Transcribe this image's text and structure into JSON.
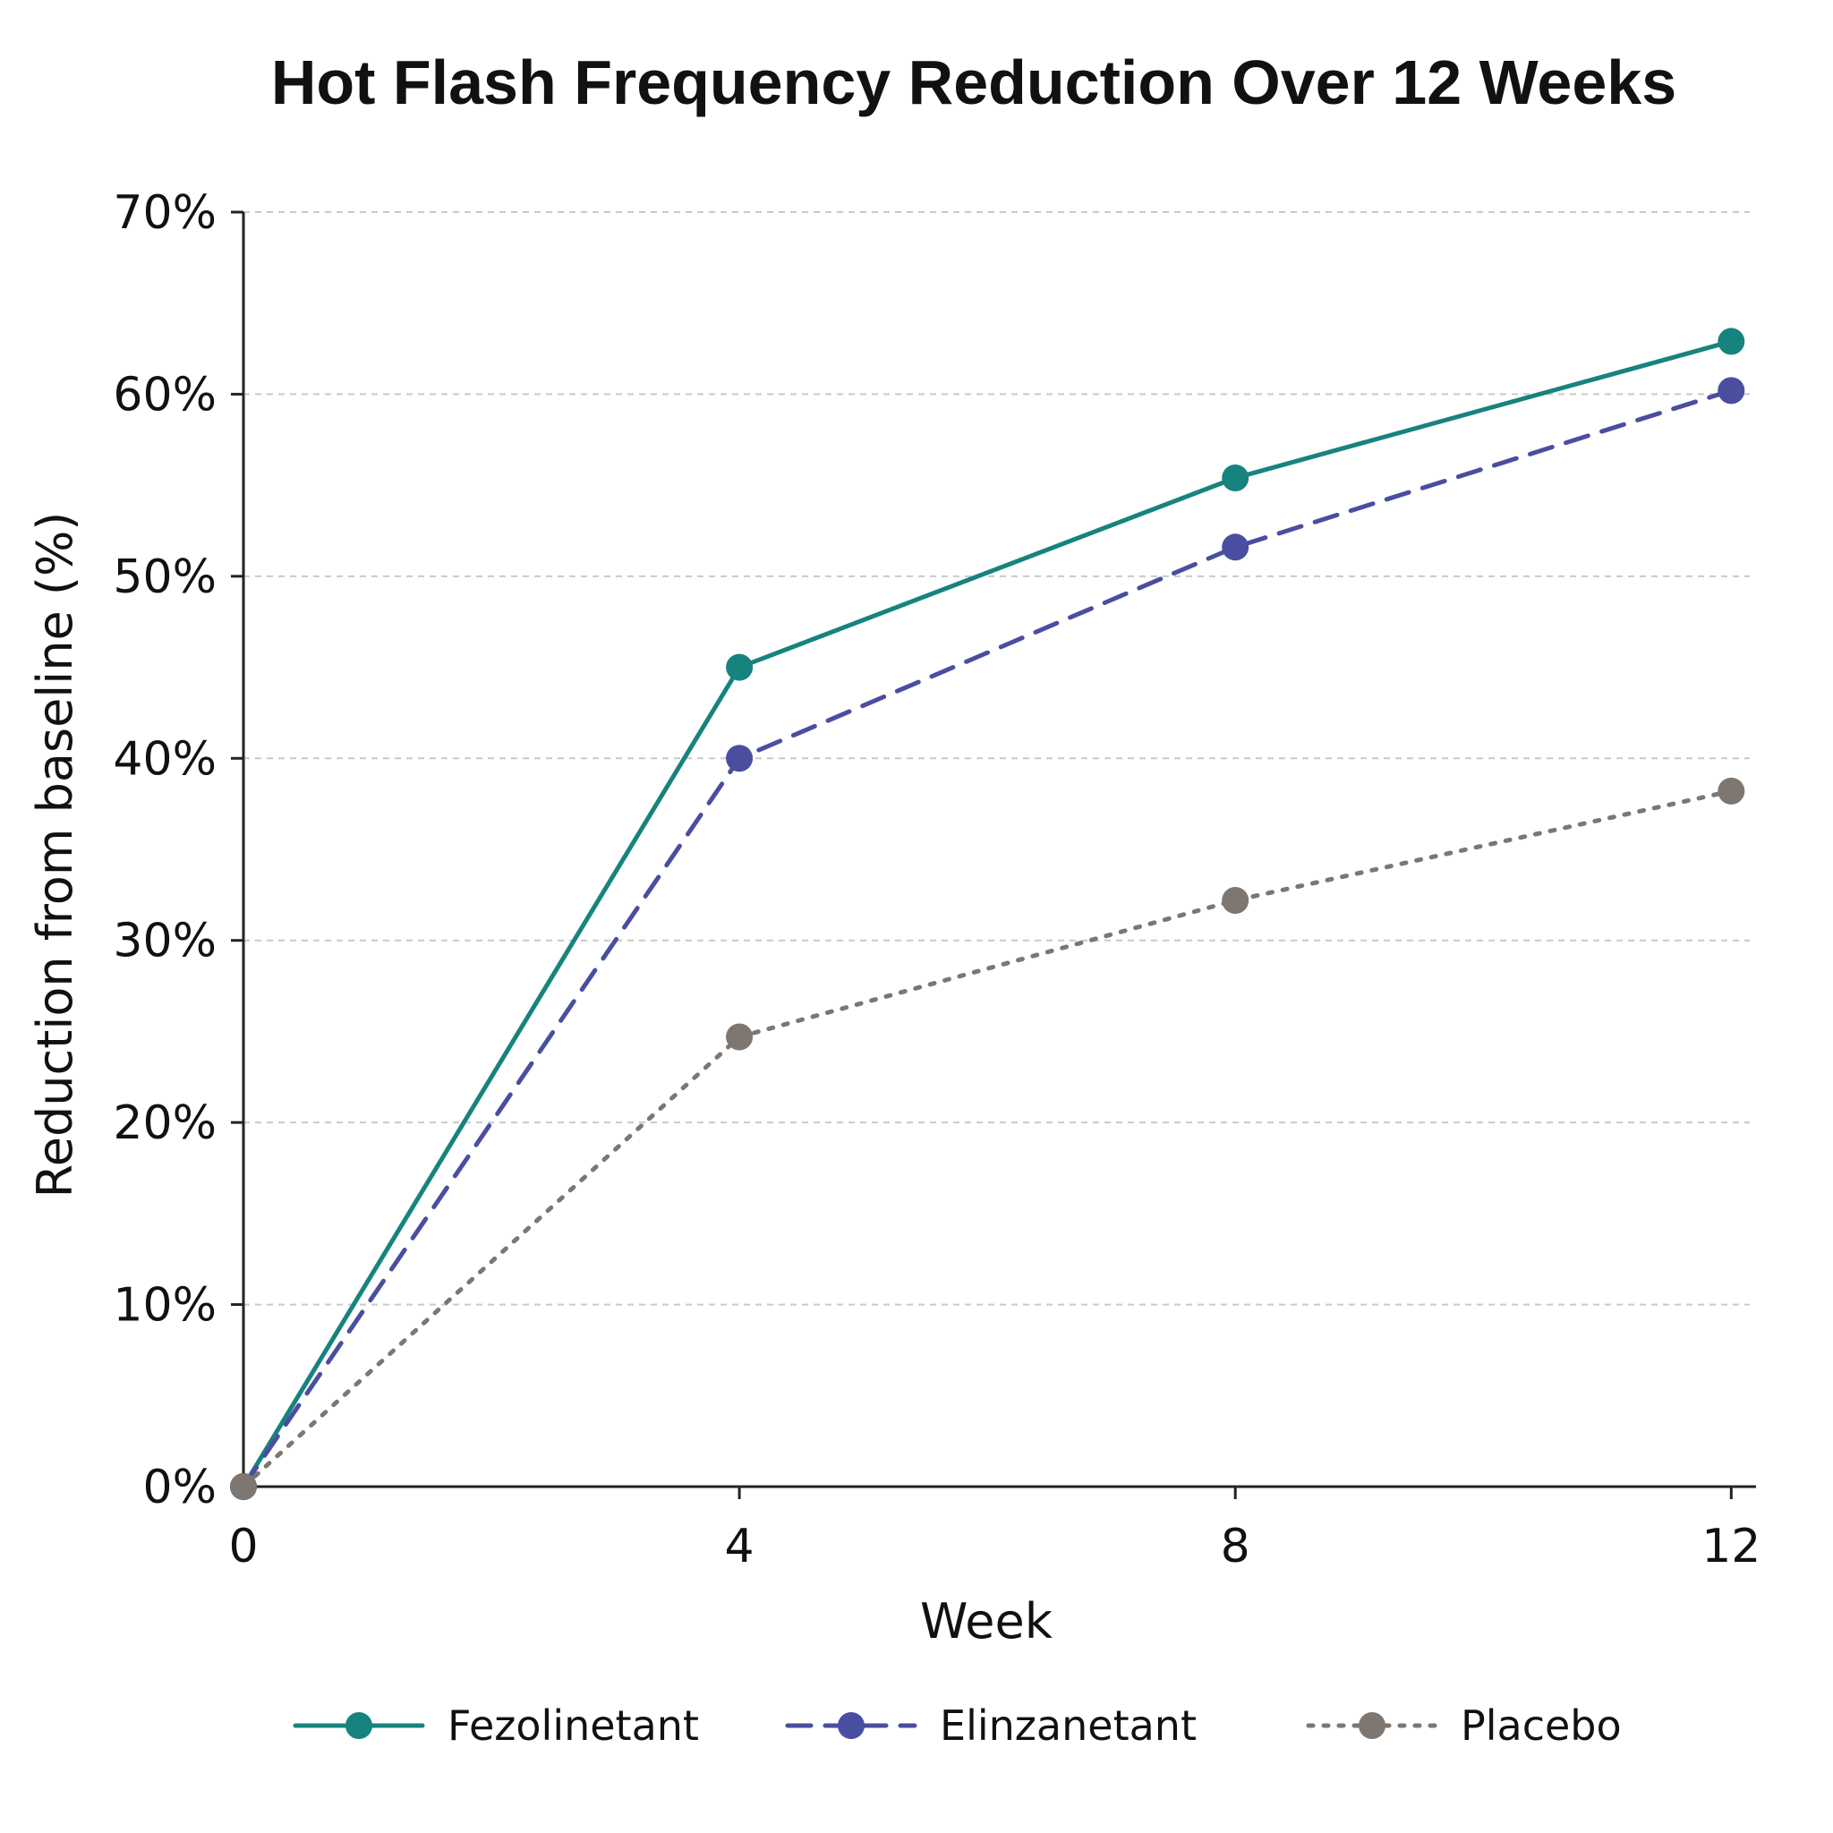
{
  "chart_data": {
    "type": "line",
    "title": "Hot Flash Frequency Reduction Over 12 Weeks",
    "xlabel": "Week",
    "ylabel": "Reduction from baseline (%)",
    "x": [
      0,
      4,
      8,
      12
    ],
    "x_ticks": [
      "0",
      "4",
      "8",
      "12"
    ],
    "xlim": [
      0,
      12.2
    ],
    "ylim": [
      0,
      70
    ],
    "y_ticks": [
      {
        "value": 0,
        "label": "0%"
      },
      {
        "value": 10,
        "label": "10%"
      },
      {
        "value": 20,
        "label": "20%"
      },
      {
        "value": 30,
        "label": "30%"
      },
      {
        "value": 40,
        "label": "40%"
      },
      {
        "value": 50,
        "label": "50%"
      },
      {
        "value": 60,
        "label": "60%"
      },
      {
        "value": 70,
        "label": "70%"
      }
    ],
    "grid": "horizontal dashed",
    "legend_position": "bottom",
    "series": [
      {
        "name": "Fezolinetant",
        "values": [
          0,
          45,
          55.4,
          62.9
        ],
        "color": "#17837e",
        "line_style": "solid"
      },
      {
        "name": "Elinzanetant",
        "values": [
          0,
          40,
          51.6,
          60.2
        ],
        "color": "#4a4ea0",
        "line_style": "dashed"
      },
      {
        "name": "Placebo",
        "values": [
          0,
          24.7,
          32.2,
          38.2
        ],
        "color": "#7d7671",
        "line_style": "dotted"
      }
    ]
  }
}
